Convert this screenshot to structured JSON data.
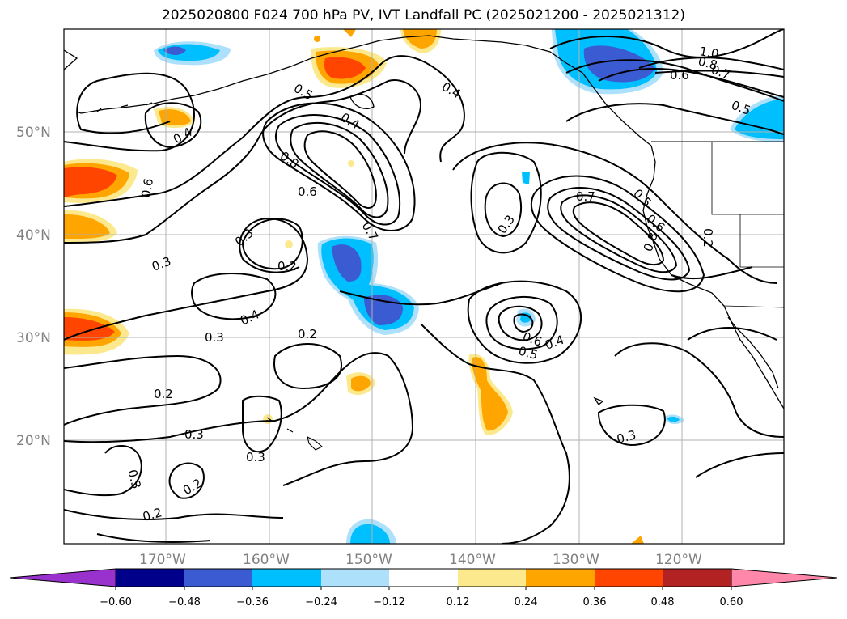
{
  "title": "2025020800 F024 700 hPa PV, IVT Landfall PC (2025021200 - 2025021312)",
  "latitude_labels": [
    "50°N",
    "40°N",
    "30°N",
    "20°N"
  ],
  "longitude_labels": [
    "170°W",
    "160°W",
    "150°W",
    "140°W",
    "130°W",
    "120°W"
  ],
  "contour_labels": [
    "0.4",
    "0.5",
    "0.4",
    "0.4",
    "0.8",
    "0.6",
    "0.6",
    "0.7",
    "0.3",
    "0.2",
    "0.3",
    "0.3",
    "0.7",
    "0.5",
    "0.6",
    "0.8",
    "0.2",
    "0.4",
    "0.3",
    "0.2",
    "0.6",
    "0.5",
    "0.4",
    "0.2",
    "0.3",
    "0.3",
    "0.3",
    "0.2",
    "0.2",
    "0.3",
    "1.0",
    "0.8",
    "0.7",
    "0.6",
    "0.5"
  ],
  "colorbar": {
    "ticks": [
      "−0.60",
      "−0.48",
      "−0.36",
      "−0.24",
      "−0.12",
      "0.12",
      "0.24",
      "0.36",
      "0.48",
      "0.60"
    ],
    "colors": [
      "#9932cc",
      "#00008b",
      "#3a5bd2",
      "#00bfff",
      "#ade0fa",
      "#ffffff",
      "#fce98d",
      "#ffa500",
      "#ff4500",
      "#b22222",
      "#ff88aa"
    ]
  }
}
